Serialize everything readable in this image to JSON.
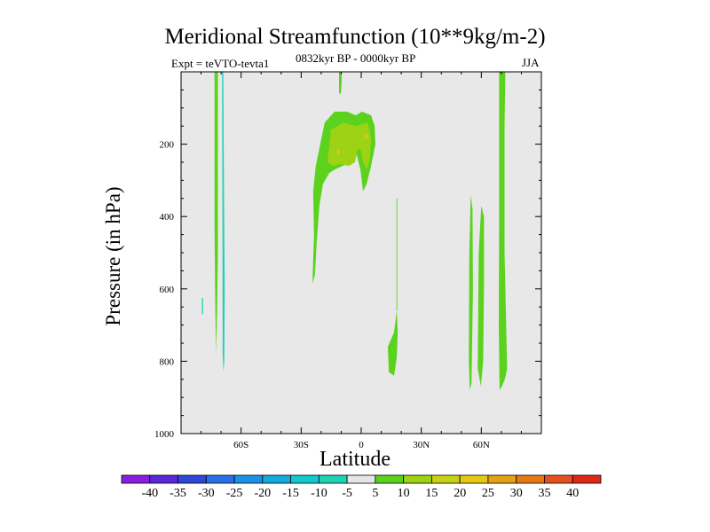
{
  "chart_data": {
    "type": "contour",
    "title": "Meridional Streamfunction (10**9kg/m-2)",
    "left_subtitle": "Expt = teVTO-tevta1",
    "center_subtitle": "0832kyr BP - 0000kyr BP",
    "right_subtitle": "JJA",
    "xlabel": "Latitude",
    "ylabel": "Pressure (in hPa)",
    "xlim": [
      -90,
      90
    ],
    "ylim": [
      1000,
      0
    ],
    "xticks": [
      {
        "value": -60,
        "label": "60S"
      },
      {
        "value": -30,
        "label": "30S"
      },
      {
        "value": 0,
        "label": "0"
      },
      {
        "value": 30,
        "label": "30N"
      },
      {
        "value": 60,
        "label": "60N"
      }
    ],
    "yticks": [
      {
        "value": 200,
        "label": "200"
      },
      {
        "value": 400,
        "label": "400"
      },
      {
        "value": 600,
        "label": "600"
      },
      {
        "value": 800,
        "label": "800"
      },
      {
        "value": 1000,
        "label": "1000"
      }
    ],
    "background_color": "#e8e8e8",
    "colorbar": {
      "levels": [
        "-40",
        "-35",
        "-30",
        "-25",
        "-20",
        "-15",
        "-10",
        "-5",
        "5",
        "10",
        "15",
        "20",
        "25",
        "30",
        "35",
        "40"
      ],
      "colors": [
        "#8a1ee0",
        "#5a28d8",
        "#3046d8",
        "#2a6ee6",
        "#1e90e6",
        "#14aadc",
        "#14c8d0",
        "#1ed2b4",
        "#e6e6e6",
        "#5ad21e",
        "#9ed214",
        "#c8d214",
        "#e6c814",
        "#e6a014",
        "#e67814",
        "#e6501e",
        "#dc2814"
      ]
    },
    "regions": [
      {
        "name": "sh-high-lat-positive-strip",
        "level": "5",
        "color": "#5ad21e",
        "points": [
          [
            -73.3,
            0
          ],
          [
            -71.6,
            0
          ],
          [
            -71.6,
            500
          ],
          [
            -72.0,
            660
          ],
          [
            -72.5,
            780
          ],
          [
            -72.9,
            660
          ],
          [
            -73.3,
            420
          ],
          [
            -73.3,
            230
          ]
        ]
      },
      {
        "name": "sh-high-lat-negative-strip",
        "level": "-5",
        "color": "#1ed2b4",
        "points": [
          [
            -69.5,
            0
          ],
          [
            -68.9,
            0
          ],
          [
            -68.6,
            300
          ],
          [
            -68.2,
            600
          ],
          [
            -68.4,
            800
          ],
          [
            -68.8,
            830
          ],
          [
            -69.2,
            780
          ],
          [
            -69.3,
            500
          ]
        ]
      },
      {
        "name": "sh-high-lat-negative-speck",
        "level": "-5",
        "color": "#1ed2b4",
        "points": [
          [
            -79.6,
            625
          ],
          [
            -79.0,
            625
          ],
          [
            -79.0,
            670
          ],
          [
            -79.6,
            670
          ]
        ]
      },
      {
        "name": "upper-tropical-cell-outer",
        "level": "5",
        "color": "#5ad21e",
        "points": [
          [
            -24.4,
            585
          ],
          [
            -23.6,
            450
          ],
          [
            -24.0,
            330
          ],
          [
            -22.7,
            260
          ],
          [
            -18.2,
            140
          ],
          [
            -13.3,
            110
          ],
          [
            -7.1,
            110
          ],
          [
            -2.7,
            120
          ],
          [
            0.4,
            110
          ],
          [
            4.9,
            120
          ],
          [
            6.7,
            150
          ],
          [
            7.1,
            200
          ],
          [
            4.9,
            260
          ],
          [
            2.7,
            310
          ],
          [
            0.9,
            330
          ],
          [
            -0.4,
            270
          ],
          [
            -2.2,
            230
          ],
          [
            -5.3,
            250
          ],
          [
            -9.3,
            260
          ],
          [
            -13.3,
            270
          ],
          [
            -16.0,
            280
          ],
          [
            -19.1,
            310
          ],
          [
            -20.9,
            370
          ],
          [
            -22.2,
            470
          ],
          [
            -23.1,
            560
          ]
        ]
      },
      {
        "name": "upper-tropical-cell-inner",
        "level": "10",
        "color": "#9ed214",
        "points": [
          [
            -16.9,
            250
          ],
          [
            -15.1,
            160
          ],
          [
            -8.7,
            140
          ],
          [
            -2.7,
            150
          ],
          [
            3.1,
            140
          ],
          [
            4.9,
            180
          ],
          [
            4.4,
            240
          ],
          [
            2.7,
            270
          ],
          [
            0.9,
            250
          ],
          [
            0.0,
            220
          ],
          [
            -1.8,
            210
          ],
          [
            -3.1,
            250
          ],
          [
            -6.2,
            260
          ],
          [
            -10.7,
            255
          ],
          [
            -13.8,
            260
          ]
        ]
      },
      {
        "name": "upper-tropical-cell-core-a",
        "level": "15",
        "color": "#c8d214",
        "points": [
          [
            -12.3,
            220
          ],
          [
            -11.3,
            210
          ],
          [
            -10.6,
            222
          ],
          [
            -11.7,
            232
          ]
        ]
      },
      {
        "name": "upper-tropical-cell-core-b",
        "level": "15",
        "color": "#c8d214",
        "points": [
          [
            1.6,
            175
          ],
          [
            2.6,
            167
          ],
          [
            3.5,
            180
          ],
          [
            2.2,
            190
          ]
        ]
      },
      {
        "name": "tropical-upper-positive-strip",
        "level": "5",
        "color": "#5ad21e",
        "points": [
          [
            -11.1,
            0
          ],
          [
            -9.8,
            0
          ],
          [
            -9.8,
            30
          ],
          [
            -10.2,
            60
          ],
          [
            -11.1,
            60
          ]
        ]
      },
      {
        "name": "nh-tropical-lower-positive-cell",
        "level": "5",
        "color": "#5ad21e",
        "points": [
          [
            17.8,
            660
          ],
          [
            16.4,
            720
          ],
          [
            13.3,
            760
          ],
          [
            13.8,
            830
          ],
          [
            16.4,
            840
          ],
          [
            17.8,
            790
          ],
          [
            18.2,
            720
          ]
        ]
      },
      {
        "name": "nh-tropical-thin-line",
        "level": "5",
        "color": "#5ad21e",
        "points": [
          [
            17.6,
            350
          ],
          [
            18.0,
            350
          ],
          [
            18.0,
            660
          ],
          [
            17.6,
            660
          ]
        ]
      },
      {
        "name": "nh-midlat-positive-cell-west",
        "level": "5",
        "color": "#5ad21e",
        "points": [
          [
            54.7,
            340
          ],
          [
            55.6,
            380
          ],
          [
            55.8,
            600
          ],
          [
            55.1,
            860
          ],
          [
            54.2,
            880
          ],
          [
            53.8,
            800
          ],
          [
            54.0,
            500
          ]
        ]
      },
      {
        "name": "nh-midlat-positive-cell-east",
        "level": "5",
        "color": "#5ad21e",
        "points": [
          [
            60.0,
            370
          ],
          [
            61.3,
            400
          ],
          [
            61.3,
            600
          ],
          [
            60.9,
            800
          ],
          [
            59.8,
            870
          ],
          [
            58.2,
            820
          ],
          [
            58.7,
            500
          ]
        ]
      },
      {
        "name": "nh-high-lat-positive-strip",
        "level": "5",
        "color": "#5ad21e",
        "points": [
          [
            68.9,
            0
          ],
          [
            72.0,
            0
          ],
          [
            71.6,
            150
          ],
          [
            71.6,
            500
          ],
          [
            72.9,
            820
          ],
          [
            71.8,
            850
          ],
          [
            70.2,
            870
          ],
          [
            69.1,
            880
          ],
          [
            68.7,
            700
          ],
          [
            68.9,
            400
          ]
        ]
      }
    ]
  }
}
